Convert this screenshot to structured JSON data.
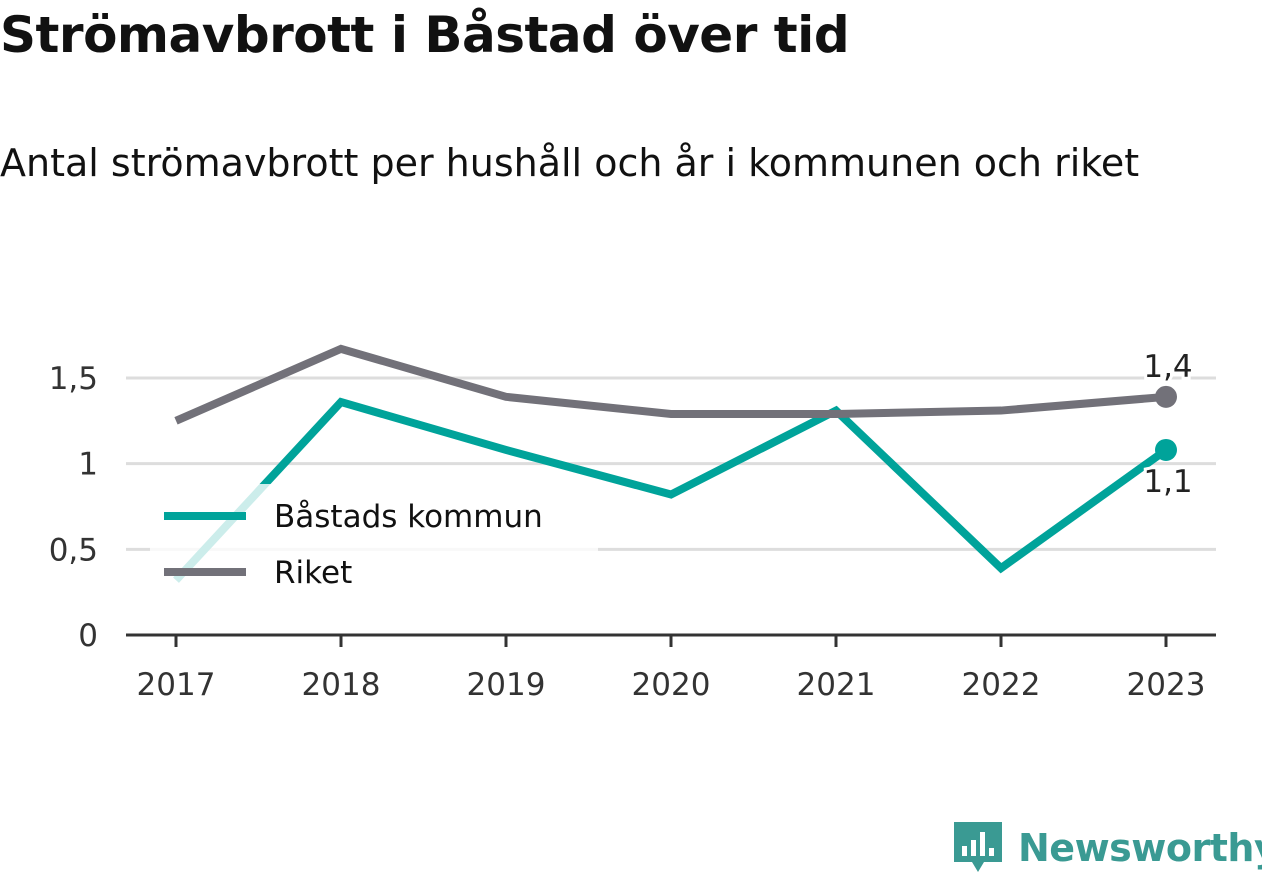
{
  "header": {
    "title": "Strömavbrott i Båstad över tid",
    "subtitle": "Antal strömavbrott per hushåll och år i kommunen och riket"
  },
  "brand": {
    "name": "Newsworthy",
    "icon": "newsworthy-logo-icon"
  },
  "colors": {
    "kommun": "#00a39a",
    "riket": "#727179",
    "grid": "#dddddd",
    "axis": "#333333"
  },
  "chart_data": {
    "type": "line",
    "x": [
      "2017",
      "2018",
      "2019",
      "2020",
      "2021",
      "2022",
      "2023"
    ],
    "series": [
      {
        "name": "Båstads kommun",
        "values": [
          0.32,
          1.36,
          1.08,
          0.82,
          1.31,
          0.39,
          1.08
        ],
        "end_label": "1,1",
        "color": "#00a39a"
      },
      {
        "name": "Riket",
        "values": [
          1.25,
          1.67,
          1.39,
          1.29,
          1.29,
          1.31,
          1.39
        ],
        "end_label": "1,4",
        "color": "#727179"
      }
    ],
    "yticks": [
      {
        "value": 0,
        "label": "0"
      },
      {
        "value": 0.5,
        "label": "0,5"
      },
      {
        "value": 1,
        "label": "1"
      },
      {
        "value": 1.5,
        "label": "1,5"
      }
    ],
    "ylim": [
      0,
      1.5
    ],
    "grid": true,
    "legend": "left"
  }
}
